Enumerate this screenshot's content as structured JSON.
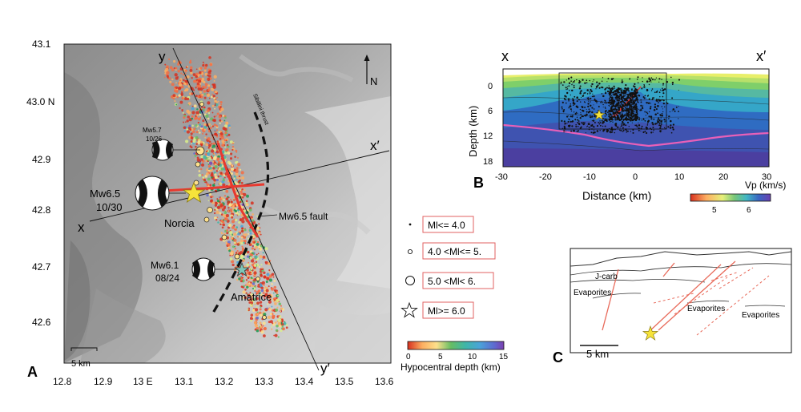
{
  "panelA": {
    "letter": "A",
    "lat_ticks": [
      "43.1",
      "43.0 N",
      "42.9",
      "42.8",
      "42.7",
      "42.6"
    ],
    "lon_ticks": [
      "12.8",
      "12.9",
      "13 E",
      "13.1",
      "13.2",
      "13.3",
      "13.4",
      "13.5",
      "13.6"
    ],
    "north_label": "N",
    "profile_labels": {
      "y_top": "y",
      "y_bottom": "y′",
      "x_left": "x",
      "x_right": "x′"
    },
    "thrust_label": "Sibillini thrust",
    "fault_label": "Mw6.5 fault",
    "scale_label": "5 km",
    "events": [
      {
        "mag_label": "Mw5.7",
        "date_label": "10/26"
      },
      {
        "mag_label": "Mw6.5",
        "date_label": "10/30"
      },
      {
        "mag_label": "Mw6.1",
        "date_label": "08/24"
      }
    ],
    "towns": [
      "Norcia",
      "Amatrice"
    ]
  },
  "legend": {
    "items": [
      "Ml<= 4.0",
      "4.0 <Ml<= 5.",
      "5.0 <Ml< 6.",
      "Ml>= 6.0"
    ],
    "depth_ticks": [
      "0",
      "5",
      "10",
      "15"
    ],
    "depth_title": "Hypocentral depth (km)",
    "depth_colors": [
      "#d7301f",
      "#f46d43",
      "#fdae61",
      "#fee08b",
      "#d9ef8b",
      "#66bd63",
      "#1a9850",
      "#3fb6a8",
      "#4aa3d9",
      "#5e6ad0",
      "#7b3fb0"
    ]
  },
  "panelB": {
    "letter": "B",
    "x_label_left": "x",
    "x_label_right": "x′",
    "ylabel": "Depth (km)",
    "xlabel": "Distance (km)",
    "y_ticks": [
      "0",
      "6",
      "12",
      "18"
    ],
    "x_ticks": [
      "-30",
      "-20",
      "-10",
      "0",
      "10",
      "20",
      "30"
    ],
    "vp_title": "Vp (km/s)",
    "vp_ticks": [
      "5",
      "6"
    ]
  },
  "panelC": {
    "letter": "C",
    "labels": [
      "J-carb",
      "Evaporites",
      "Evaporites",
      "Evaporites"
    ],
    "scale_label": "5 km"
  }
}
